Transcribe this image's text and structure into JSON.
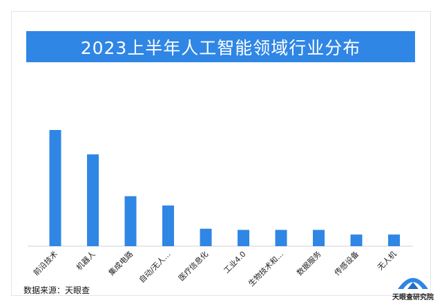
{
  "chart_data": {
    "type": "bar",
    "title": "2023上半年人工智能领域行业分布",
    "categories": [
      "前沿技术",
      "机器人",
      "集成电路",
      "自动/无人…",
      "医疗信息化",
      "工业4.0",
      "生物技术和…",
      "数据服务",
      "传感设备",
      "无人机"
    ],
    "values": [
      100,
      79,
      43,
      35,
      15,
      14,
      14,
      14,
      10,
      10
    ],
    "ylim": [
      0,
      100
    ],
    "grid": false,
    "bar_color": "#2f86e5"
  },
  "source_label": "数据来源：天眼查",
  "logo_text": "天眼查研究院"
}
